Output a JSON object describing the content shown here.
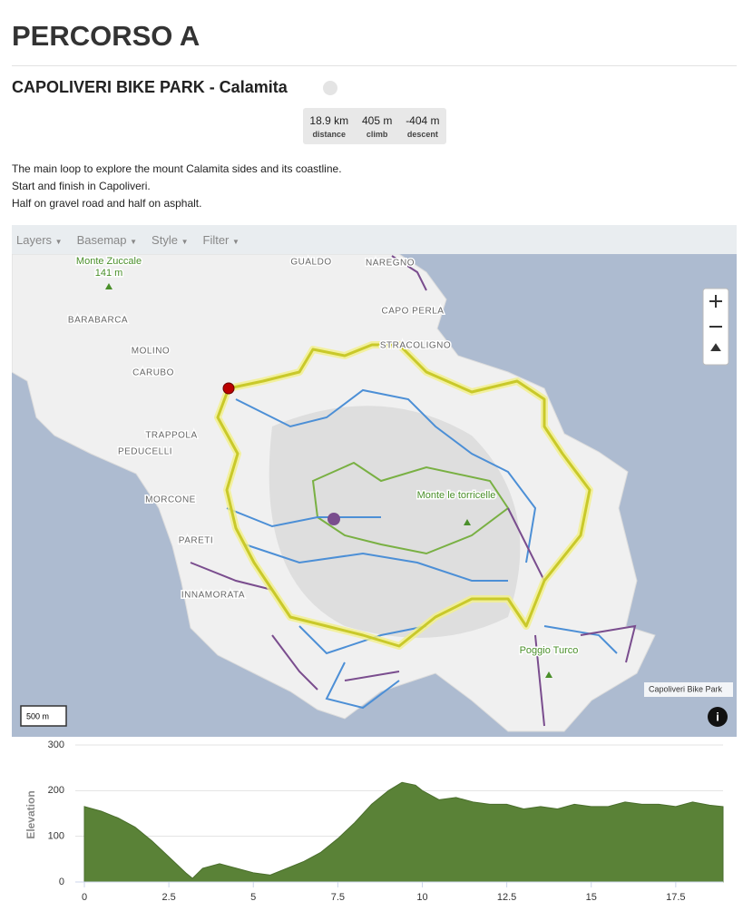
{
  "header": {
    "title": "PERCORSO A"
  },
  "route": {
    "name": "CAPOLIVERI BIKE PARK - Calamita",
    "stats": [
      {
        "value": "18.9 km",
        "label": "distance"
      },
      {
        "value": "405 m",
        "label": "climb"
      },
      {
        "value": "-404 m",
        "label": "descent"
      }
    ],
    "description": [
      "The main loop to explore the mount Calamita sides and its coastline.",
      "Start and finish in Capoliveri.",
      "Half on gravel road and half on asphalt."
    ]
  },
  "map": {
    "toolbar": [
      "Layers",
      "Basemap",
      "Style",
      "Filter"
    ],
    "labels": [
      "Monte Zuccale",
      "141 m",
      "GUALDO",
      "NAREGNO",
      "BARABARCA",
      "CAPO PERLA",
      "MOLINO",
      "STRACOLIGNO",
      "CARUBO",
      "TRAPPOLA",
      "PEDUCELLI",
      "MORCONE",
      "Monte le torricelle",
      "PARETI",
      "INNAMORATA",
      "Poggio Turco"
    ],
    "attribution": "Capoliveri Bike Park",
    "scale": "500 m"
  },
  "chart_data": {
    "type": "area",
    "y_label": "Elevation",
    "color": "#5a8237",
    "x": [
      0,
      0.5,
      1,
      1.5,
      2,
      2.5,
      3,
      3.2,
      3.5,
      4,
      4.5,
      5,
      5.5,
      6,
      6.5,
      7,
      7.5,
      8,
      8.5,
      9,
      9.4,
      9.8,
      10,
      10.5,
      11,
      11.5,
      12,
      12.5,
      13,
      13.5,
      14,
      14.5,
      15,
      15.5,
      16,
      16.5,
      17,
      17.5,
      18,
      18.5,
      18.9
    ],
    "values": [
      165,
      155,
      140,
      120,
      90,
      55,
      20,
      8,
      30,
      40,
      30,
      20,
      15,
      30,
      45,
      65,
      95,
      130,
      170,
      200,
      218,
      212,
      200,
      180,
      185,
      175,
      170,
      170,
      160,
      165,
      160,
      170,
      165,
      165,
      175,
      170,
      170,
      165,
      175,
      168,
      165
    ],
    "xlim": [
      0,
      18.9
    ],
    "ylim": [
      0,
      300
    ],
    "xticks": [
      0,
      2.5,
      5,
      7.5,
      10,
      12.5,
      15,
      17.5
    ],
    "yticks": [
      0,
      100,
      200,
      300
    ],
    "grid": true
  }
}
